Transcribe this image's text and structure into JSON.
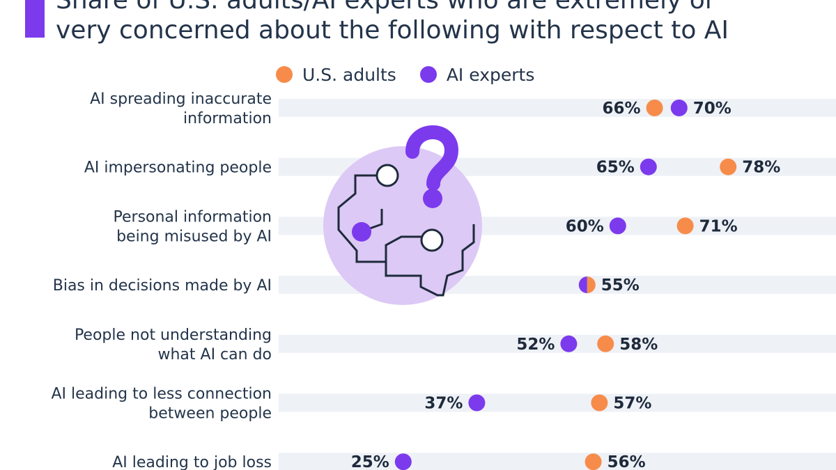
{
  "title_lines": [
    "Share of U.S. adults/AI experts who are extremely or",
    "very concerned about the following with respect to AI"
  ],
  "colors": {
    "adults": "#f78c4a",
    "experts": "#7c3aed",
    "row_band": "#eef1f6",
    "accent_bar": "#7c3aed",
    "illustration_circle": "#dcc9f5"
  },
  "illustration": {
    "icon": "brain-question-mark-icon"
  },
  "chart_data": {
    "type": "dot-plot",
    "title": "Share of U.S. adults/AI experts who are extremely or very concerned about the following with respect to AI",
    "unit": "%",
    "legend": [
      "U.S. adults",
      "AI experts"
    ],
    "legend_position": "top",
    "xlim": [
      0,
      100
    ],
    "categories": [
      [
        "AI spreading inaccurate",
        "information"
      ],
      [
        "AI impersonating people"
      ],
      [
        "Personal information",
        "being misused by AI"
      ],
      [
        "Bias in decisions made by AI"
      ],
      [
        "People not understanding",
        "what AI can do"
      ],
      [
        "AI leading to less connection",
        "between people"
      ],
      [
        "AI leading to job loss"
      ]
    ],
    "series": [
      {
        "name": "U.S. adults",
        "values": [
          66,
          78,
          71,
          55,
          58,
          57,
          56
        ]
      },
      {
        "name": "AI experts",
        "values": [
          70,
          65,
          60,
          55,
          52,
          37,
          25
        ]
      }
    ]
  }
}
